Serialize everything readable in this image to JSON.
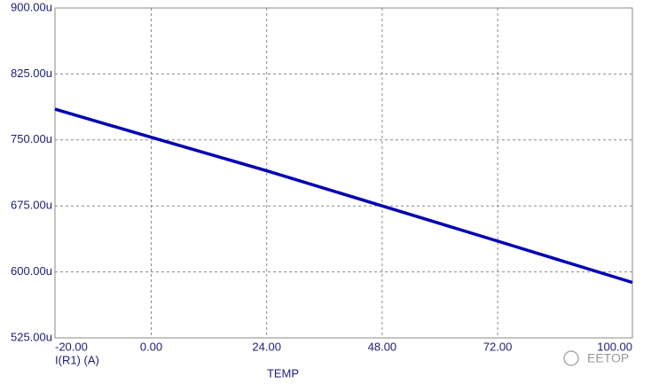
{
  "chart_data": {
    "type": "line",
    "x_label": "TEMP",
    "x": [
      -20,
      0,
      24,
      48,
      72,
      100
    ],
    "series": [
      {
        "name": "I(R1) (A)",
        "color": "#0000b4",
        "values": [
          785,
          753,
          715,
          675,
          635,
          588
        ]
      }
    ],
    "xlim": [
      -20,
      100
    ],
    "xticks": [
      {
        "value": -20,
        "label": "-20.00"
      },
      {
        "value": 0,
        "label": "0.00"
      },
      {
        "value": 24,
        "label": "24.00"
      },
      {
        "value": 48,
        "label": "48.00"
      },
      {
        "value": 72,
        "label": "72.00"
      },
      {
        "value": 100,
        "label": "100.00"
      }
    ],
    "ylim": [
      525,
      900
    ],
    "yticks": [
      {
        "value": 525,
        "label": "525.00u"
      },
      {
        "value": 600,
        "label": "600.00u"
      },
      {
        "value": 675,
        "label": "675.00u"
      },
      {
        "value": 750,
        "label": "750.00u"
      },
      {
        "value": 825,
        "label": "825.00u"
      },
      {
        "value": 900,
        "label": "900.00u"
      }
    ],
    "grid": true,
    "watermark": "EETOP"
  }
}
